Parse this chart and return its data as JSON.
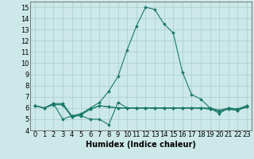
{
  "title": "",
  "xlabel": "Humidex (Indice chaleur)",
  "x": [
    0,
    1,
    2,
    3,
    4,
    5,
    6,
    7,
    8,
    9,
    10,
    11,
    12,
    13,
    14,
    15,
    16,
    17,
    18,
    19,
    20,
    21,
    22,
    23
  ],
  "series_main": [
    6.2,
    6.0,
    6.4,
    6.4,
    5.3,
    5.5,
    6.0,
    6.5,
    7.5,
    8.8,
    11.2,
    13.3,
    15.0,
    14.8,
    13.5,
    12.7,
    9.2,
    7.2,
    6.8,
    6.0,
    5.8,
    6.0,
    5.9,
    6.2
  ],
  "series_flat1": [
    6.2,
    6.0,
    6.4,
    5.0,
    5.3,
    5.3,
    5.0,
    5.0,
    4.5,
    6.5,
    6.0,
    6.0,
    6.0,
    6.0,
    6.0,
    6.0,
    6.0,
    6.0,
    6.0,
    6.0,
    5.5,
    6.0,
    5.9,
    6.2
  ],
  "series_flat2": [
    6.2,
    6.0,
    6.3,
    6.3,
    5.2,
    5.4,
    5.9,
    6.2,
    6.1,
    6.0,
    6.0,
    6.0,
    6.0,
    6.0,
    6.0,
    6.0,
    6.0,
    6.0,
    6.0,
    5.9,
    5.7,
    5.9,
    5.8,
    6.1
  ],
  "series_flat3": [
    6.2,
    6.0,
    6.3,
    6.3,
    5.2,
    5.4,
    5.9,
    6.2,
    6.1,
    6.0,
    6.0,
    6.0,
    6.0,
    6.0,
    6.0,
    6.0,
    6.0,
    6.0,
    6.0,
    5.9,
    5.7,
    5.9,
    5.8,
    6.1
  ],
  "line_color": "#1a7a6a",
  "bg_color": "#cce8e8",
  "grid_color": "#aacccc",
  "ylim": [
    4,
    15.5
  ],
  "xlim": [
    -0.5,
    23.5
  ],
  "yticks": [
    4,
    5,
    6,
    7,
    8,
    9,
    10,
    11,
    12,
    13,
    14,
    15
  ],
  "xticks": [
    0,
    1,
    2,
    3,
    4,
    5,
    6,
    7,
    8,
    9,
    10,
    11,
    12,
    13,
    14,
    15,
    16,
    17,
    18,
    19,
    20,
    21,
    22,
    23
  ],
  "xtick_labels": [
    "0",
    "1",
    "2",
    "3",
    "4",
    "5",
    "6",
    "7",
    "8",
    "9",
    "10",
    "11",
    "12",
    "13",
    "14",
    "15",
    "16",
    "17",
    "18",
    "19",
    "20",
    "21",
    "22",
    "23"
  ],
  "xlabel_fontsize": 7,
  "tick_fontsize": 6,
  "marker": "D",
  "markersize": 1.8,
  "linewidth": 0.8
}
